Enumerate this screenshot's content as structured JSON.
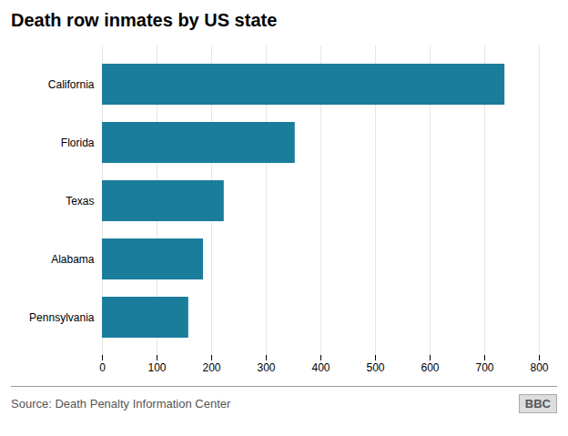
{
  "chart_data": {
    "type": "bar",
    "orientation": "horizontal",
    "title": "Death row inmates by US state",
    "categories": [
      "Pennsylvania",
      "Alabama",
      "Texas",
      "Florida",
      "California"
    ],
    "values": [
      158,
      185,
      223,
      353,
      737
    ],
    "color": "#1a7d9b",
    "xlim": [
      0,
      800
    ],
    "xticks": [
      0,
      100,
      200,
      300,
      400,
      500,
      600,
      700,
      800
    ],
    "grid": true,
    "caption": "Source: Death Penalty Information Center",
    "annotations": [
      "BBC"
    ]
  }
}
